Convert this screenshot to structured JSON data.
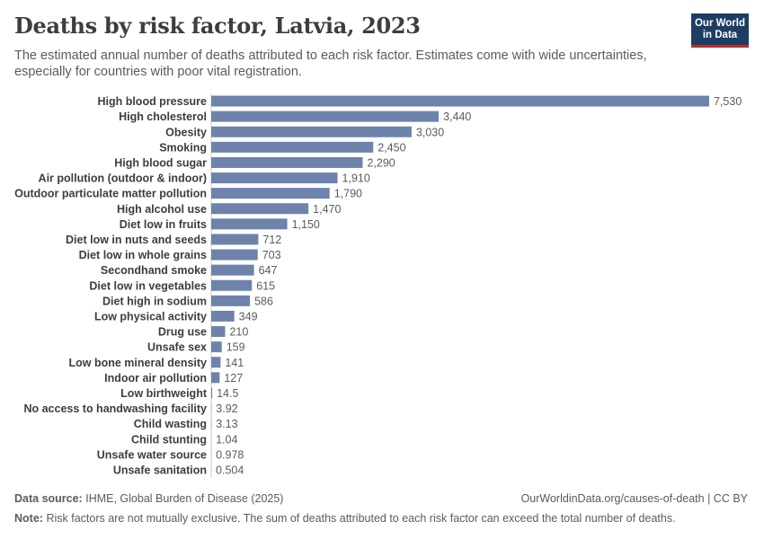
{
  "header": {
    "title": "Deaths by risk factor, Latvia, 2023",
    "subtitle": "The estimated annual number of deaths attributed to each risk factor. Estimates come with wide uncertainties, especially for countries with poor vital registration.",
    "logo_line1": "Our World",
    "logo_line2": "in Data"
  },
  "footer": {
    "source_label": "Data source:",
    "source_text": "IHME, Global Burden of Disease (2025)",
    "credit": "OurWorldinData.org/causes-of-death | CC BY",
    "note_label": "Note:",
    "note_text": "Risk factors are not mutually exclusive. The sum of deaths attributed to each risk factor can exceed the total number of deaths."
  },
  "colors": {
    "bar": "#6d83ab",
    "axis": "#cccccc",
    "label": "#3d3d3d",
    "value": "#5b5b5b"
  },
  "chart_data": {
    "type": "bar",
    "orientation": "horizontal",
    "title": "Deaths by risk factor, Latvia, 2023",
    "xlim": [
      0,
      7530
    ],
    "categories": [
      "High blood pressure",
      "High cholesterol",
      "Obesity",
      "Smoking",
      "High blood sugar",
      "Air pollution (outdoor & indoor)",
      "Outdoor particulate matter pollution",
      "High alcohol use",
      "Diet low in fruits",
      "Diet low in nuts and seeds",
      "Diet low in whole grains",
      "Secondhand smoke",
      "Diet low in vegetables",
      "Diet high in sodium",
      "Low physical activity",
      "Drug use",
      "Unsafe sex",
      "Low bone mineral density",
      "Indoor air pollution",
      "Low birthweight",
      "No access to handwashing facility",
      "Child wasting",
      "Child stunting",
      "Unsafe water source",
      "Unsafe sanitation"
    ],
    "values": [
      7530,
      3440,
      3030,
      2450,
      2290,
      1910,
      1790,
      1470,
      1150,
      712,
      703,
      647,
      615,
      586,
      349,
      210,
      159,
      141,
      127,
      14.5,
      3.92,
      3.13,
      1.04,
      0.978,
      0.504
    ],
    "value_labels": [
      "7,530",
      "3,440",
      "3,030",
      "2,450",
      "2,290",
      "1,910",
      "1,790",
      "1,470",
      "1,150",
      "712",
      "703",
      "647",
      "615",
      "586",
      "349",
      "210",
      "159",
      "141",
      "127",
      "14.5",
      "3.92",
      "3.13",
      "1.04",
      "0.978",
      "0.504"
    ]
  }
}
